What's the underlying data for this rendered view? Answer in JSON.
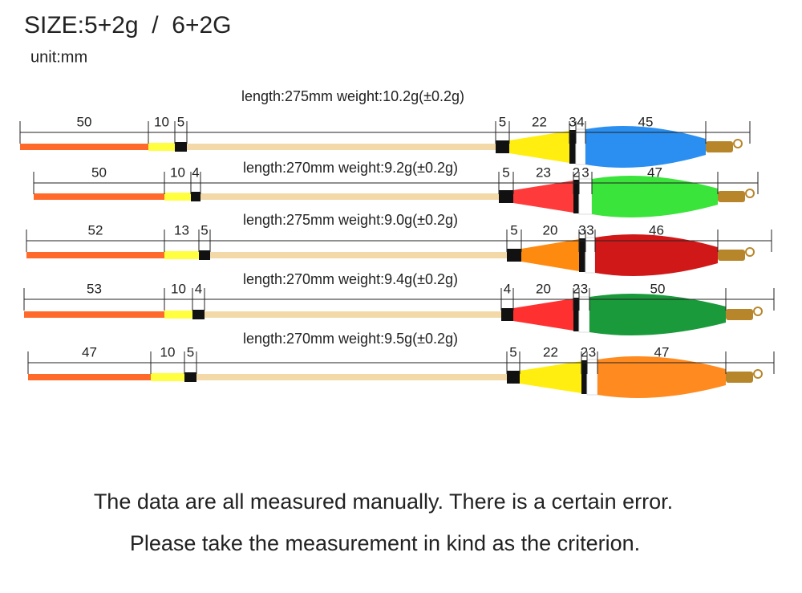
{
  "header": {
    "title": "SIZE:5+2g  /  6+2G",
    "unit": "unit:mm"
  },
  "floats": [
    {
      "spec": "length:275mm weight:10.2g(±0.2g)",
      "dims": [
        "50",
        "10",
        "5",
        "5",
        "22",
        "3",
        "4",
        "45"
      ]
    },
    {
      "spec": "length:270mm weight:9.2g(±0.2g)",
      "dims": [
        "50",
        "10",
        "4",
        "5",
        "23",
        "2",
        "3",
        "47"
      ]
    },
    {
      "spec": "length:275mm weight:9.0g(±0.2g)",
      "dims": [
        "52",
        "13",
        "5",
        "5",
        "20",
        "3",
        "3",
        "46"
      ]
    },
    {
      "spec": "length:270mm weight:9.4g(±0.2g)",
      "dims": [
        "53",
        "10",
        "4",
        "4",
        "20",
        "2",
        "3",
        "50"
      ]
    },
    {
      "spec": "length:270mm weight:9.5g(±0.2g)",
      "dims": [
        "47",
        "10",
        "5",
        "5",
        "22",
        "2",
        "3",
        "47"
      ]
    }
  ],
  "notes": [
    "The data are all measured manually. There is a certain error.",
    "Please take the measurement in kind as the criterion."
  ]
}
